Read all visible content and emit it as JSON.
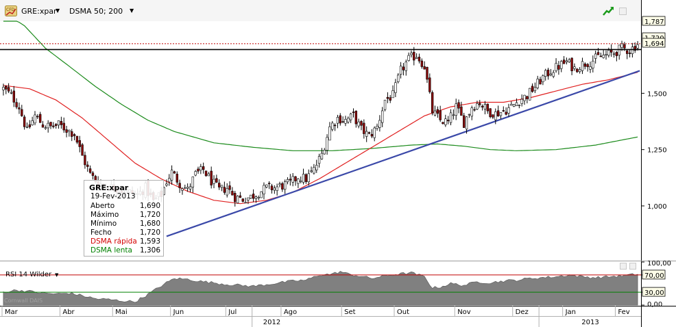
{
  "toolbar": {
    "symbol": "GRE:xpar",
    "indicator": "DSMA 50; 200",
    "colors": {
      "background": "#f5f5f5"
    }
  },
  "tooltip": {
    "title": "GRE:xpar",
    "date": "19-Fev-2013",
    "rows": [
      {
        "label": "Aberto",
        "value": "1,690",
        "color": "#000000"
      },
      {
        "label": "Máximo",
        "value": "1,720",
        "color": "#000000"
      },
      {
        "label": "Mínimo",
        "value": "1,680",
        "color": "#000000"
      },
      {
        "label": "Fecho",
        "value": "1,720",
        "color": "#000000"
      },
      {
        "label": "DSMA rápida",
        "value": "1,593",
        "color": "#d40000"
      },
      {
        "label": "DSMA lenta",
        "value": "1,306",
        "color": "#008000"
      }
    ]
  },
  "rsi_panel": {
    "label": "RSI 14 Wilder",
    "watermark": "Cornwall DAIS",
    "fill_color": "#808080"
  },
  "chart_data": [
    {
      "type": "candlestick",
      "title": "GRE:xpar",
      "y_axis": {
        "ticks": [
          1.0,
          1.25,
          1.5
        ],
        "tick_labels": [
          "1,000",
          "1,250",
          "1,500"
        ],
        "range": [
          0.76,
          1.82
        ]
      },
      "x_axis": {
        "months": [
          {
            "label": "Mar",
            "index": 0
          },
          {
            "label": "Abr",
            "index": 22
          },
          {
            "label": "Mai",
            "index": 42
          },
          {
            "label": "Jun",
            "index": 64
          },
          {
            "label": "Jul",
            "index": 85
          },
          {
            "label": "Ago",
            "index": 106
          },
          {
            "label": "Set",
            "index": 129
          },
          {
            "label": "Out",
            "index": 149
          },
          {
            "label": "Nov",
            "index": 172
          },
          {
            "label": "Dez",
            "index": 194
          },
          {
            "label": "Jan",
            "index": 213
          },
          {
            "label": "Fev",
            "index": 233
          }
        ],
        "years": [
          {
            "label": "2012",
            "index": 102
          },
          {
            "label": "2013",
            "index": 223
          }
        ],
        "year_boundaries": [
          94.5,
          203.5
        ]
      },
      "price_labels": [
        {
          "label": "1,787",
          "value": 1.787,
          "color": "#000000"
        },
        {
          "label": "1,720",
          "value": 1.72,
          "color": "#000000"
        },
        {
          "label": "1,694",
          "value": 1.694,
          "color": "#000000"
        }
      ],
      "horizontal_lines": [
        {
          "name": "resistance",
          "value": 1.694,
          "color": "#000000",
          "style": "solid"
        },
        {
          "name": "last-close",
          "value": 1.72,
          "color": "#c00000",
          "style": "dotted"
        }
      ],
      "trendline": {
        "from": {
          "index": 62,
          "value": 0.865
        },
        "to": {
          "index": 241,
          "value": 1.6
        },
        "color": "#3a48a8"
      },
      "dsma_fast_anchors": [
        [
          0,
          1.535
        ],
        [
          10,
          1.52
        ],
        [
          20,
          1.47
        ],
        [
          30,
          1.39
        ],
        [
          40,
          1.29
        ],
        [
          50,
          1.19
        ],
        [
          60,
          1.12
        ],
        [
          70,
          1.065
        ],
        [
          80,
          1.025
        ],
        [
          90,
          1.01
        ],
        [
          100,
          1.025
        ],
        [
          110,
          1.06
        ],
        [
          120,
          1.12
        ],
        [
          130,
          1.19
        ],
        [
          140,
          1.26
        ],
        [
          150,
          1.33
        ],
        [
          160,
          1.4
        ],
        [
          170,
          1.44
        ],
        [
          180,
          1.46
        ],
        [
          190,
          1.46
        ],
        [
          200,
          1.48
        ],
        [
          210,
          1.51
        ],
        [
          220,
          1.54
        ],
        [
          230,
          1.56
        ],
        [
          241,
          1.593
        ]
      ],
      "dsma_slow_anchors": [
        [
          0,
          1.86
        ],
        [
          8,
          1.8
        ],
        [
          16,
          1.7
        ],
        [
          25,
          1.62
        ],
        [
          35,
          1.53
        ],
        [
          45,
          1.45
        ],
        [
          55,
          1.38
        ],
        [
          65,
          1.33
        ],
        [
          80,
          1.28
        ],
        [
          95,
          1.26
        ],
        [
          110,
          1.245
        ],
        [
          125,
          1.245
        ],
        [
          140,
          1.255
        ],
        [
          155,
          1.27
        ],
        [
          165,
          1.275
        ],
        [
          175,
          1.265
        ],
        [
          185,
          1.25
        ],
        [
          195,
          1.245
        ],
        [
          210,
          1.25
        ],
        [
          225,
          1.27
        ],
        [
          241,
          1.306
        ]
      ],
      "close_anchors": [
        [
          0,
          1.52
        ],
        [
          3,
          1.49
        ],
        [
          6,
          1.44
        ],
        [
          9,
          1.33
        ],
        [
          12,
          1.4
        ],
        [
          15,
          1.36
        ],
        [
          18,
          1.35
        ],
        [
          21,
          1.36
        ],
        [
          24,
          1.34
        ],
        [
          27,
          1.32
        ],
        [
          30,
          1.22
        ],
        [
          33,
          1.14
        ],
        [
          36,
          1.1
        ],
        [
          39,
          1.09
        ],
        [
          42,
          1.08
        ],
        [
          45,
          1.07
        ],
        [
          48,
          1.06
        ],
        [
          51,
          1.05
        ],
        [
          54,
          1.08
        ],
        [
          57,
          1.02
        ],
        [
          60,
          1.05
        ],
        [
          62,
          1.11
        ],
        [
          64,
          1.15
        ],
        [
          67,
          1.1
        ],
        [
          70,
          1.07
        ],
        [
          73,
          1.14
        ],
        [
          76,
          1.16
        ],
        [
          79,
          1.11
        ],
        [
          82,
          1.07
        ],
        [
          85,
          1.08
        ],
        [
          88,
          1.04
        ],
        [
          91,
          1.03
        ],
        [
          94,
          1.04
        ],
        [
          97,
          1.06
        ],
        [
          100,
          1.08
        ],
        [
          103,
          1.08
        ],
        [
          106,
          1.09
        ],
        [
          109,
          1.1
        ],
        [
          112,
          1.13
        ],
        [
          115,
          1.12
        ],
        [
          118,
          1.16
        ],
        [
          121,
          1.23
        ],
        [
          124,
          1.35
        ],
        [
          127,
          1.39
        ],
        [
          130,
          1.38
        ],
        [
          133,
          1.4
        ],
        [
          136,
          1.34
        ],
        [
          139,
          1.31
        ],
        [
          142,
          1.35
        ],
        [
          145,
          1.47
        ],
        [
          148,
          1.49
        ],
        [
          151,
          1.6
        ],
        [
          154,
          1.65
        ],
        [
          157,
          1.67
        ],
        [
          160,
          1.62
        ],
        [
          163,
          1.42
        ],
        [
          166,
          1.38
        ],
        [
          169,
          1.37
        ],
        [
          172,
          1.44
        ],
        [
          175,
          1.37
        ],
        [
          178,
          1.44
        ],
        [
          181,
          1.46
        ],
        [
          184,
          1.42
        ],
        [
          187,
          1.41
        ],
        [
          190,
          1.42
        ],
        [
          193,
          1.44
        ],
        [
          196,
          1.47
        ],
        [
          199,
          1.49
        ],
        [
          202,
          1.53
        ],
        [
          205,
          1.57
        ],
        [
          208,
          1.6
        ],
        [
          211,
          1.62
        ],
        [
          214,
          1.64
        ],
        [
          217,
          1.61
        ],
        [
          220,
          1.63
        ],
        [
          223,
          1.64
        ],
        [
          226,
          1.66
        ],
        [
          229,
          1.67
        ],
        [
          232,
          1.68
        ],
        [
          235,
          1.7
        ],
        [
          238,
          1.69
        ],
        [
          241,
          1.72
        ]
      ],
      "n_bars": 242
    },
    {
      "type": "area",
      "title": "RSI 14 Wilder",
      "y_axis": {
        "ticks": [
          0,
          30,
          70,
          100
        ],
        "tick_labels": [
          "0,00",
          "30,00",
          "70,00",
          "100,00"
        ],
        "range": [
          0,
          100
        ]
      },
      "levels": [
        {
          "value": 70,
          "color": "#c00000"
        },
        {
          "value": 30,
          "color": "#008000"
        }
      ],
      "rsi_anchors": [
        [
          0,
          30
        ],
        [
          5,
          35
        ],
        [
          10,
          32
        ],
        [
          15,
          28
        ],
        [
          20,
          26
        ],
        [
          25,
          28
        ],
        [
          30,
          22
        ],
        [
          35,
          15
        ],
        [
          40,
          13
        ],
        [
          45,
          10
        ],
        [
          50,
          8
        ],
        [
          55,
          25
        ],
        [
          60,
          45
        ],
        [
          65,
          62
        ],
        [
          70,
          60
        ],
        [
          75,
          55
        ],
        [
          80,
          52
        ],
        [
          85,
          48
        ],
        [
          90,
          46
        ],
        [
          95,
          44
        ],
        [
          100,
          48
        ],
        [
          105,
          52
        ],
        [
          110,
          56
        ],
        [
          115,
          58
        ],
        [
          120,
          70
        ],
        [
          125,
          72
        ],
        [
          128,
          78
        ],
        [
          131,
          72
        ],
        [
          135,
          68
        ],
        [
          140,
          62
        ],
        [
          145,
          68
        ],
        [
          150,
          72
        ],
        [
          155,
          75
        ],
        [
          160,
          66
        ],
        [
          163,
          40
        ],
        [
          166,
          42
        ],
        [
          170,
          50
        ],
        [
          175,
          46
        ],
        [
          180,
          54
        ],
        [
          185,
          52
        ],
        [
          190,
          56
        ],
        [
          195,
          58
        ],
        [
          200,
          62
        ],
        [
          205,
          64
        ],
        [
          210,
          66
        ],
        [
          215,
          70
        ],
        [
          220,
          66
        ],
        [
          225,
          64
        ],
        [
          230,
          66
        ],
        [
          235,
          68
        ],
        [
          241,
          72
        ]
      ]
    }
  ]
}
